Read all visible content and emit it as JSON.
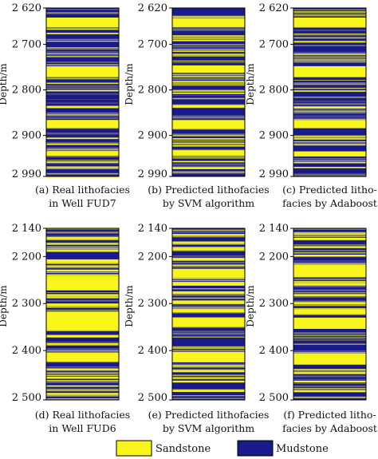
{
  "colors": {
    "sandstone": "#f7f51c",
    "mudstone": "#1a1a8c",
    "axis": "#000000"
  },
  "chart_data": [
    {
      "type": "lithofacies-log",
      "ylabel": "Depth/m",
      "yticks": [
        "2 620",
        "2 700",
        "2 800",
        "2 900",
        "2 990"
      ],
      "ylim": [
        2620,
        2990
      ],
      "caption": [
        "(a) Real lithofacies",
        "in Well FUD7"
      ],
      "sandstone_intervals": [
        [
          2641,
          2663
        ],
        [
          2692,
          2694
        ],
        [
          2720,
          2722
        ],
        [
          2748,
          2772
        ],
        [
          2800,
          2803
        ],
        [
          2835,
          2840
        ],
        [
          2866,
          2884
        ],
        [
          2905,
          2908
        ],
        [
          2918,
          2921
        ],
        [
          2934,
          2945
        ],
        [
          2957,
          2960
        ],
        [
          2968,
          2971
        ]
      ]
    },
    {
      "type": "lithofacies-log",
      "ylabel": "Depth/m",
      "yticks": [
        "2 620",
        "2 700",
        "2 800",
        "2 900",
        "2 990"
      ],
      "ylim": [
        2620,
        2990
      ],
      "caption": [
        "(b) Predicted lithofacies",
        "by SVM algorithm"
      ],
      "sandstone_intervals": [
        [
          2643,
          2661
        ],
        [
          2690,
          2693
        ],
        [
          2710,
          2712
        ],
        [
          2746,
          2762
        ],
        [
          2780,
          2783
        ],
        [
          2806,
          2809
        ],
        [
          2834,
          2839
        ],
        [
          2866,
          2886
        ],
        [
          2906,
          2909
        ],
        [
          2921,
          2924
        ],
        [
          2933,
          2944
        ],
        [
          2956,
          2959
        ],
        [
          2970,
          2974
        ]
      ]
    },
    {
      "type": "lithofacies-log",
      "ylabel": "Depth/m",
      "yticks": [
        "2 620",
        "2 700",
        "2 800",
        "2 900",
        "2 990"
      ],
      "ylim": [
        2620,
        2990
      ],
      "caption": [
        "(c) Predicted litho-",
        "facies by Adaboost"
      ],
      "sandstone_intervals": [
        [
          2641,
          2663
        ],
        [
          2693,
          2696
        ],
        [
          2720,
          2723
        ],
        [
          2748,
          2772
        ],
        [
          2801,
          2804
        ],
        [
          2836,
          2841
        ],
        [
          2866,
          2884
        ],
        [
          2906,
          2909
        ],
        [
          2919,
          2922
        ],
        [
          2935,
          2946
        ],
        [
          2958,
          2961
        ],
        [
          2969,
          2972
        ]
      ]
    },
    {
      "type": "lithofacies-log",
      "ylabel": "Depth/m",
      "yticks": [
        "2 140",
        "2 200",
        "2 300",
        "2 400",
        "2 500"
      ],
      "ylim": [
        2140,
        2505
      ],
      "caption": [
        "(d) Real lithofacies",
        "in Well FUD6"
      ],
      "sandstone_intervals": [
        [
          2158,
          2163
        ],
        [
          2172,
          2175
        ],
        [
          2186,
          2190
        ],
        [
          2206,
          2214
        ],
        [
          2228,
          2232
        ],
        [
          2242,
          2272
        ],
        [
          2280,
          2283
        ],
        [
          2300,
          2306
        ],
        [
          2318,
          2357
        ],
        [
          2368,
          2372
        ],
        [
          2384,
          2387
        ],
        [
          2404,
          2424
        ],
        [
          2438,
          2442
        ],
        [
          2456,
          2460
        ],
        [
          2474,
          2477
        ],
        [
          2490,
          2494
        ]
      ]
    },
    {
      "type": "lithofacies-log",
      "ylabel": "Depth/m",
      "yticks": [
        "2 140",
        "2 200",
        "2 300",
        "2 400",
        "2 500"
      ],
      "ylim": [
        2140,
        2505
      ],
      "caption": [
        "(e) Predicted lithofacies",
        "by SVM algorithm"
      ],
      "sandstone_intervals": [
        [
          2152,
          2156
        ],
        [
          2168,
          2171
        ],
        [
          2182,
          2186
        ],
        [
          2204,
          2209
        ],
        [
          2226,
          2244
        ],
        [
          2254,
          2262
        ],
        [
          2274,
          2279
        ],
        [
          2294,
          2299
        ],
        [
          2312,
          2319
        ],
        [
          2330,
          2349
        ],
        [
          2403,
          2425
        ],
        [
          2442,
          2446
        ],
        [
          2464,
          2468
        ],
        [
          2484,
          2488
        ]
      ]
    },
    {
      "type": "lithofacies-log",
      "ylabel": "Depth/m",
      "yticks": [
        "2 140",
        "2 200",
        "2 300",
        "2 400",
        "2 500"
      ],
      "ylim": [
        2140,
        2505
      ],
      "caption": [
        "(f) Predicted litho-",
        "facies by Adaboost"
      ],
      "sandstone_intervals": [
        [
          2160,
          2165
        ],
        [
          2178,
          2182
        ],
        [
          2196,
          2200
        ],
        [
          2218,
          2244
        ],
        [
          2256,
          2262
        ],
        [
          2280,
          2284
        ],
        [
          2298,
          2302
        ],
        [
          2312,
          2322
        ],
        [
          2330,
          2354
        ],
        [
          2406,
          2430
        ],
        [
          2446,
          2450
        ],
        [
          2464,
          2468
        ],
        [
          2484,
          2488
        ]
      ]
    }
  ],
  "legend": [
    {
      "label": "Sandstone",
      "color": "#f7f51c"
    },
    {
      "label": "Mudstone",
      "color": "#1a1a8c"
    }
  ]
}
